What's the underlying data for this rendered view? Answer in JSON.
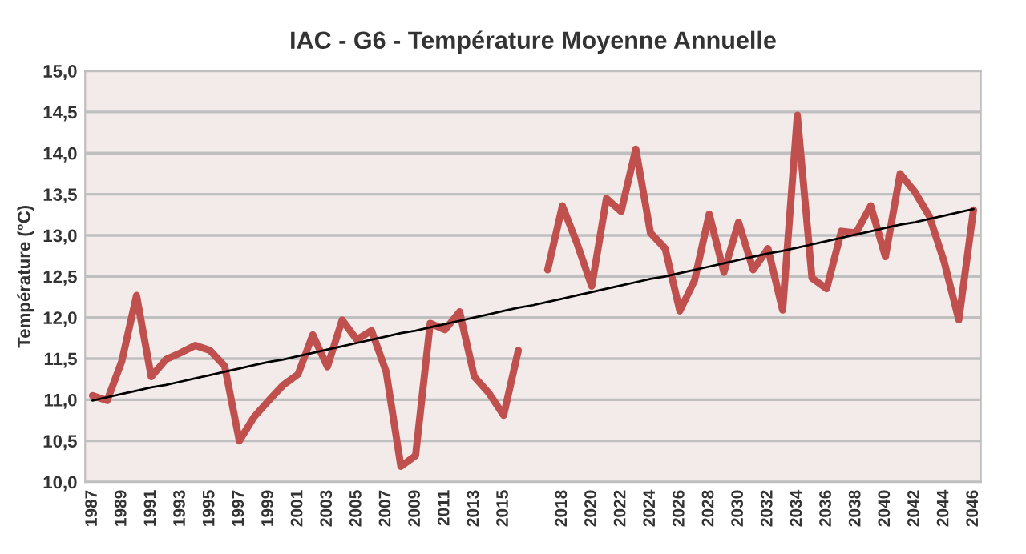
{
  "chart_data": {
    "type": "line",
    "title": "IAC - G6 - Température Moyenne Annuelle",
    "ylabel": "Température (°C)",
    "categories": [
      "1987",
      null,
      "1989",
      null,
      "1991",
      null,
      "1993",
      null,
      "1995",
      null,
      "1997",
      null,
      "1999",
      null,
      "2001",
      null,
      "2003",
      null,
      "2005",
      null,
      "2007",
      null,
      "2009",
      null,
      "2011",
      null,
      "2013",
      null,
      "2015",
      null,
      null,
      null,
      "2018",
      null,
      "2020",
      null,
      "2022",
      null,
      "2024",
      null,
      "2026",
      null,
      "2028",
      null,
      "2030",
      null,
      "2032",
      null,
      "2034",
      null,
      "2036",
      null,
      "2038",
      null,
      "2040",
      null,
      "2042",
      null,
      "2044",
      null,
      "2046"
    ],
    "series": [
      {
        "color": "#c0504d",
        "values": [
          11.05,
          10.99,
          11.47,
          12.27,
          11.28,
          11.49,
          11.57,
          11.66,
          11.6,
          11.41,
          10.5,
          10.79,
          10.99,
          11.18,
          11.31,
          11.79,
          11.4,
          11.97,
          11.73,
          11.84,
          11.34,
          10.19,
          10.32,
          11.93,
          11.85,
          12.07,
          11.28,
          11.08,
          10.81,
          11.6,
          null,
          12.58,
          13.36,
          12.9,
          12.38,
          13.45,
          13.29,
          14.05,
          13.03,
          12.84,
          12.08,
          12.45,
          13.26,
          12.55,
          13.16,
          12.58,
          12.84,
          12.09,
          14.46,
          12.48,
          12.35,
          13.05,
          13.03,
          13.36,
          12.74,
          13.75,
          13.53,
          13.23,
          12.68,
          11.97,
          13.31
        ]
      },
      {
        "color": "#000000",
        "values": [
          10.99,
          11.03,
          11.07,
          11.11,
          11.15,
          11.18,
          11.22,
          11.26,
          11.3,
          11.34,
          11.38,
          11.42,
          11.46,
          11.49,
          11.53,
          11.57,
          11.61,
          11.65,
          11.69,
          11.73,
          11.77,
          11.81,
          11.84,
          11.88,
          11.92,
          11.96,
          12.0,
          12.04,
          12.08,
          12.12,
          12.15,
          12.19,
          12.23,
          12.27,
          12.31,
          12.35,
          12.39,
          12.43,
          12.47,
          12.5,
          12.54,
          12.58,
          12.62,
          12.66,
          12.7,
          12.74,
          12.78,
          12.81,
          12.85,
          12.89,
          12.93,
          12.97,
          13.01,
          13.05,
          13.09,
          13.13,
          13.16,
          13.2,
          13.24,
          13.28,
          13.32
        ]
      }
    ],
    "ylim": [
      10.0,
      15.0
    ],
    "yticks": [
      {
        "value": 10.0,
        "label": "10,0"
      },
      {
        "value": 10.5,
        "label": "10,5"
      },
      {
        "value": 11.0,
        "label": "11,0"
      },
      {
        "value": 11.5,
        "label": "11,5"
      },
      {
        "value": 12.0,
        "label": "12,0"
      },
      {
        "value": 12.5,
        "label": "12,5"
      },
      {
        "value": 13.0,
        "label": "13,0"
      },
      {
        "value": 13.5,
        "label": "13,5"
      },
      {
        "value": 14.0,
        "label": "14,0"
      },
      {
        "value": 14.5,
        "label": "14,5"
      },
      {
        "value": 15.0,
        "label": "15,0"
      }
    ],
    "grid": "y",
    "marker": "none",
    "line_style": "solid"
  }
}
